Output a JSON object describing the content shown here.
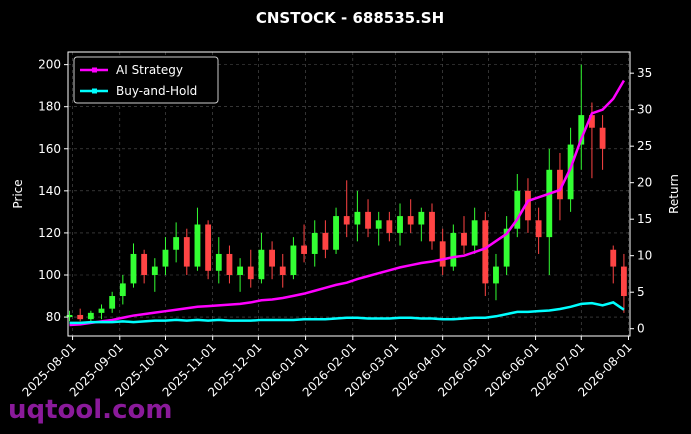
{
  "chart_data": {
    "type": "candlestick",
    "title": "CNSTOCK - 688535.SH",
    "ylabel": "Price",
    "y2label": "Return",
    "watermark": "uqtool.com",
    "x": [
      "2025-07-30",
      "2025-08-06",
      "2025-08-13",
      "2025-08-20",
      "2025-08-27",
      "2025-09-03",
      "2025-09-10",
      "2025-09-17",
      "2025-09-24",
      "2025-10-01",
      "2025-10-08",
      "2025-10-15",
      "2025-10-22",
      "2025-10-29",
      "2025-11-05",
      "2025-11-12",
      "2025-11-19",
      "2025-11-26",
      "2025-12-03",
      "2025-12-10",
      "2025-12-17",
      "2025-12-24",
      "2025-12-31",
      "2026-01-07",
      "2026-01-14",
      "2026-01-21",
      "2026-01-28",
      "2026-02-04",
      "2026-02-11",
      "2026-02-18",
      "2026-02-25",
      "2026-03-04",
      "2026-03-11",
      "2026-03-18",
      "2026-03-25",
      "2026-04-01",
      "2026-04-08",
      "2026-04-15",
      "2026-04-22",
      "2026-04-29",
      "2026-05-06",
      "2026-05-13",
      "2026-05-20",
      "2026-05-27",
      "2026-06-03",
      "2026-06-10",
      "2026-06-17",
      "2026-06-24",
      "2026-07-01",
      "2026-07-08",
      "2026-07-15",
      "2026-07-22",
      "2026-07-29"
    ],
    "open": [
      80,
      81,
      79,
      82,
      84,
      90,
      96,
      110,
      100,
      104,
      112,
      118,
      104,
      124,
      102,
      110,
      100,
      104,
      98,
      112,
      104,
      100,
      114,
      110,
      120,
      112,
      128,
      124,
      130,
      122,
      126,
      120,
      128,
      124,
      130,
      116,
      104,
      120,
      114,
      126,
      96,
      104,
      122,
      140,
      126,
      118,
      150,
      136,
      162,
      176,
      170,
      112,
      104
    ],
    "high": [
      83,
      84,
      83,
      86,
      92,
      100,
      115,
      112,
      108,
      118,
      125,
      122,
      132,
      126,
      118,
      114,
      108,
      112,
      120,
      116,
      110,
      118,
      124,
      126,
      126,
      132,
      145,
      140,
      136,
      130,
      130,
      134,
      136,
      132,
      134,
      122,
      124,
      128,
      132,
      130,
      110,
      128,
      148,
      146,
      132,
      160,
      158,
      170,
      200,
      182,
      176,
      114,
      110
    ],
    "low": [
      78,
      78,
      77,
      79,
      82,
      86,
      94,
      96,
      92,
      100,
      106,
      100,
      102,
      98,
      96,
      96,
      92,
      94,
      96,
      98,
      94,
      98,
      106,
      104,
      108,
      110,
      118,
      116,
      118,
      114,
      116,
      114,
      120,
      116,
      112,
      100,
      102,
      110,
      110,
      90,
      88,
      100,
      118,
      120,
      110,
      100,
      126,
      130,
      150,
      146,
      150,
      96,
      82
    ],
    "close": [
      81,
      79,
      82,
      84,
      90,
      96,
      110,
      100,
      104,
      112,
      118,
      104,
      124,
      102,
      110,
      100,
      104,
      98,
      112,
      104,
      100,
      114,
      110,
      120,
      112,
      128,
      124,
      130,
      122,
      126,
      120,
      128,
      124,
      130,
      116,
      104,
      120,
      114,
      126,
      96,
      104,
      122,
      140,
      126,
      118,
      150,
      136,
      162,
      176,
      170,
      160,
      104,
      90
    ],
    "up_color": "#33ff33",
    "down_color": "#ff4444",
    "series": [
      {
        "name": "AI Strategy",
        "color": "#ff00ff",
        "axis": "y2",
        "values": [
          0.5,
          0.6,
          0.8,
          1,
          1.2,
          1.5,
          1.8,
          2,
          2.2,
          2.4,
          2.6,
          2.8,
          3,
          3.1,
          3.2,
          3.3,
          3.4,
          3.6,
          3.9,
          4,
          4.2,
          4.5,
          4.8,
          5.2,
          5.6,
          6,
          6.3,
          6.8,
          7.2,
          7.6,
          8,
          8.4,
          8.7,
          9,
          9.2,
          9.5,
          9.8,
          10,
          10.5,
          11,
          12,
          13,
          15,
          17.5,
          18,
          18.5,
          19,
          22,
          26,
          29.5,
          30,
          31.5,
          34
        ]
      },
      {
        "name": "Buy-and-Hold",
        "color": "#00ffff",
        "axis": "y2",
        "values": [
          0.8,
          0.8,
          0.9,
          0.9,
          0.9,
          1,
          0.9,
          1,
          1.1,
          1.1,
          1.2,
          1.1,
          1.2,
          1.1,
          1.2,
          1.1,
          1.1,
          1.1,
          1.2,
          1.2,
          1.2,
          1.2,
          1.3,
          1.3,
          1.3,
          1.4,
          1.5,
          1.5,
          1.4,
          1.4,
          1.4,
          1.5,
          1.5,
          1.4,
          1.4,
          1.3,
          1.3,
          1.4,
          1.5,
          1.5,
          1.7,
          2,
          2.3,
          2.3,
          2.4,
          2.5,
          2.7,
          3,
          3.4,
          3.5,
          3.2,
          3.6,
          2.6
        ]
      }
    ],
    "xlim": [
      "2025-07-29",
      "2026-08-02"
    ],
    "xticks": [
      "2025-08-01",
      "2025-09-01",
      "2025-10-01",
      "2025-11-01",
      "2025-12-01",
      "2026-01-01",
      "2026-02-01",
      "2026-03-01",
      "2026-04-01",
      "2026-05-01",
      "2026-06-01",
      "2026-07-01",
      "2026-08-01"
    ],
    "ylim": [
      71,
      206
    ],
    "yticks": [
      80,
      100,
      120,
      140,
      160,
      180,
      200
    ],
    "y2lim": [
      -1,
      37.9
    ],
    "y2ticks": [
      0,
      5,
      10,
      15,
      20,
      25,
      30,
      35
    ],
    "grid": true,
    "legend": "upper left"
  }
}
